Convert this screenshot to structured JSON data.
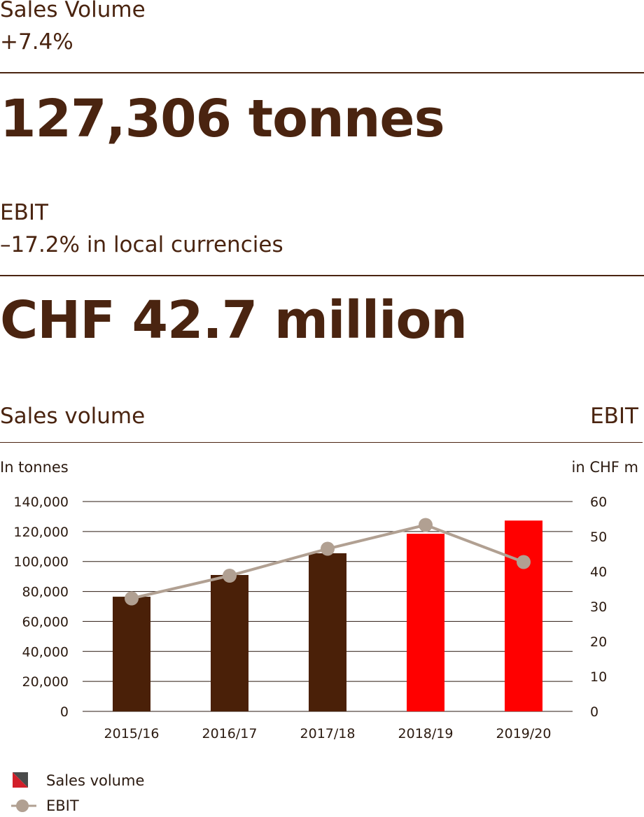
{
  "kpis": [
    {
      "label": "Sales Volume",
      "change": "+7.4%",
      "value": "127,306 tonnes"
    },
    {
      "label": "EBIT",
      "change": "–17.2% in local currencies",
      "value": "CHF 42.7 million"
    }
  ],
  "chart_header": {
    "left_title": "Sales volume",
    "right_title": "EBIT"
  },
  "chart_data": {
    "type": "bar",
    "categories": [
      "2015/16",
      "2016/17",
      "2017/18",
      "2018/19",
      "2019/20"
    ],
    "series": [
      {
        "name": "Sales volume",
        "type": "bar",
        "axis": "left",
        "values": [
          76500,
          91000,
          105500,
          118500,
          127306
        ],
        "colors": [
          "#4a2008",
          "#4a2008",
          "#4a2008",
          "#ff0000",
          "#ff0000"
        ]
      },
      {
        "name": "EBIT",
        "type": "line",
        "axis": "right",
        "values": [
          32.3,
          38.8,
          46.5,
          53.3,
          42.7
        ],
        "color": "#b1a092"
      }
    ],
    "ylabel": "In tonnes",
    "y2label": "in CHF m",
    "ylim": [
      0,
      140000
    ],
    "y2lim": [
      0,
      60
    ],
    "yticks": [
      "0",
      "20,000",
      "40,000",
      "60,000",
      "80,000",
      "100,000",
      "120,000",
      "140,000"
    ],
    "y2ticks": [
      "0",
      "10",
      "20",
      "30",
      "40",
      "50",
      "60"
    ],
    "grid": true,
    "legend": [
      {
        "name": "Sales volume",
        "icon": "split-square-icon"
      },
      {
        "name": "EBIT",
        "icon": "line-dot-icon"
      }
    ],
    "legend_position": "bottom-left"
  }
}
